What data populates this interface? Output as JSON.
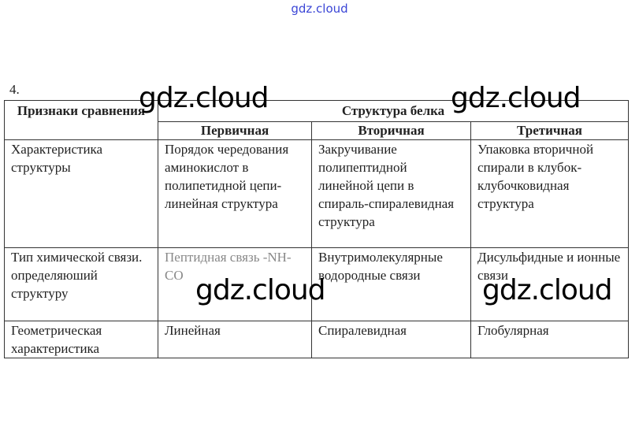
{
  "watermark_top": "gdz.cloud",
  "watermark": "gdz.cloud",
  "task_number": "4.",
  "table": {
    "corner_header": "Признаки сравнения",
    "group_header": "Структура белка",
    "columns": [
      "Первичная",
      "Вторичная",
      "Третичная"
    ],
    "rows": [
      {
        "label": "Характеристика структуры",
        "cells": [
          "Порядок чередования аминокислот в полипетидной цепи-линейная структура",
          "Закручивание полипептидной линейной цепи в спираль-спиралевидная структура",
          "Упаковка вторичной спирали в клубок-клубочковидная структура"
        ]
      },
      {
        "label": "Тип химической связи. определяюший структуру",
        "cells": [
          "Пептидная связь -NH-CO",
          "Внутримолекулярные водородные связи",
          "Дисульфидные и ионные связи"
        ]
      },
      {
        "label": "Геометрическая характеристика",
        "cells": [
          "Линейная",
          "Спиралевидная",
          "Глобулярная"
        ]
      }
    ]
  }
}
